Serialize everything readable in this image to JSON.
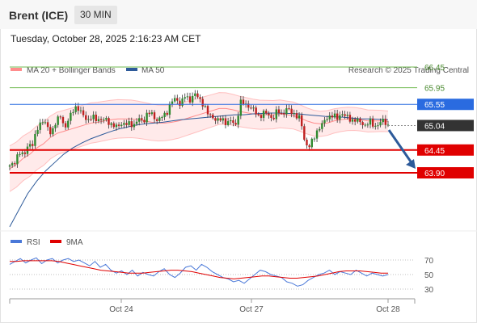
{
  "header": {
    "title": "Brent (ICE)",
    "timeframe": "30 MIN"
  },
  "datetime": "Tuesday, October 28, 2025 2:16:23 AM CET",
  "legend": {
    "ma20": "MA 20 + Bollinger Bands",
    "ma50": "MA 50",
    "credit": "Research © 2025 Trading Central"
  },
  "rsi_legend": {
    "rsi": "RSI",
    "ma9": "9MA"
  },
  "colors": {
    "resistance": "#6fba4f",
    "pivot": "#2a6be0",
    "support": "#e00000",
    "current": "#333333",
    "bands": "#ff8c8c",
    "ma50": "#2d5a9a",
    "rsi": "#4a78d8",
    "rsi_ma": "#e00000",
    "arrow": "#2d5a9a"
  },
  "chart_data": [
    {
      "type": "candlestick",
      "x_ticks": [
        "Oct 24",
        "Oct 27",
        "Oct 28"
      ],
      "ylim": [
        63.2,
        66.8
      ],
      "levels": [
        {
          "label": "66.45",
          "value": 66.45,
          "kind": "resistance"
        },
        {
          "label": "65.95",
          "value": 65.95,
          "kind": "resistance"
        },
        {
          "label": "65.55",
          "value": 65.55,
          "kind": "pivot"
        },
        {
          "label": "65.04",
          "value": 65.04,
          "kind": "current"
        },
        {
          "label": "64.45",
          "value": 64.45,
          "kind": "support"
        },
        {
          "label": "63.90",
          "value": 63.9,
          "kind": "support"
        }
      ],
      "close_path": [
        64.05,
        64.15,
        64.4,
        64.3,
        64.6,
        64.55,
        65.0,
        65.15,
        65.05,
        64.85,
        65.1,
        65.3,
        64.95,
        65.25,
        65.5,
        65.4,
        65.3,
        65.15,
        65.25,
        65.2,
        65.15,
        65.2,
        65.05,
        65.0,
        65.1,
        65.05,
        65.1,
        65.05,
        65.2,
        65.15,
        65.35,
        65.3,
        65.15,
        65.25,
        65.35,
        65.6,
        65.7,
        65.55,
        65.75,
        65.65,
        65.8,
        65.7,
        65.55,
        65.3,
        65.25,
        65.15,
        65.2,
        65.1,
        65.15,
        65.05,
        65.6,
        65.55,
        65.5,
        65.4,
        65.25,
        65.35,
        65.3,
        65.2,
        65.4,
        65.3,
        65.45,
        65.35,
        65.3,
        65.2,
        64.6,
        64.55,
        64.75,
        65.0,
        65.1,
        65.25,
        65.3,
        65.2,
        65.35,
        65.25,
        65.15,
        65.2,
        65.1,
        65.05,
        65.15,
        65.0,
        65.1,
        65.15,
        65.04
      ],
      "ma20": [
        64.0,
        64.1,
        64.25,
        64.35,
        64.5,
        64.6,
        64.75,
        64.85,
        64.9,
        64.95,
        65.0,
        65.05,
        65.1,
        65.12,
        65.15,
        65.18,
        65.2,
        65.2,
        65.2,
        65.18,
        65.15,
        65.12,
        65.1,
        65.1,
        65.12,
        65.15,
        65.2,
        65.25,
        65.3,
        65.35,
        65.4,
        65.45,
        65.45,
        65.42,
        65.38,
        65.35,
        65.32,
        65.3,
        65.3,
        65.3,
        65.32,
        65.3,
        65.28,
        65.22,
        65.15,
        65.1,
        65.08,
        65.1,
        65.15,
        65.18,
        65.2,
        65.2,
        65.18,
        65.15,
        65.15,
        65.15,
        65.14
      ],
      "ma50": [
        62.6,
        63.0,
        63.4,
        63.7,
        63.95,
        64.15,
        64.35,
        64.5,
        64.62,
        64.72,
        64.8,
        64.88,
        64.95,
        65.0,
        65.05,
        65.08,
        65.1,
        65.12,
        65.15,
        65.18,
        65.2,
        65.22,
        65.24,
        65.26,
        65.28,
        65.3,
        65.3,
        65.32,
        65.33,
        65.34,
        65.34,
        65.33,
        65.32,
        65.3,
        65.28,
        65.26,
        65.25,
        65.24,
        65.22,
        65.2,
        65.2,
        65.19,
        65.18
      ]
    },
    {
      "type": "line",
      "title": "RSI",
      "y_ticks": [
        "70",
        "50",
        "30"
      ],
      "ylim": [
        20,
        80
      ],
      "rsi": [
        64,
        68,
        72,
        66,
        70,
        73,
        65,
        70,
        72,
        66,
        70,
        72,
        68,
        70,
        66,
        62,
        68,
        60,
        64,
        56,
        52,
        55,
        50,
        56,
        48,
        53,
        50,
        48,
        54,
        58,
        50,
        46,
        52,
        60,
        62,
        56,
        64,
        60,
        54,
        50,
        46,
        44,
        40,
        42,
        38,
        44,
        50,
        56,
        54,
        50,
        48,
        46,
        40,
        38,
        34,
        36,
        42,
        46,
        50,
        52,
        56,
        50,
        54,
        52,
        50,
        56,
        52,
        48,
        52,
        50,
        48,
        50
      ],
      "ma9": [
        68,
        68,
        69,
        69,
        69,
        69,
        69,
        68,
        66,
        64,
        62,
        60,
        58,
        56,
        55,
        54,
        53,
        52,
        52,
        52,
        53,
        54,
        55,
        56,
        56,
        55,
        54,
        52,
        50,
        48,
        46,
        45,
        44,
        45,
        46,
        47,
        48,
        48,
        47,
        46,
        45,
        45,
        46,
        47,
        48,
        50,
        52,
        54,
        55,
        55,
        55,
        54,
        53,
        52,
        52
      ]
    }
  ]
}
